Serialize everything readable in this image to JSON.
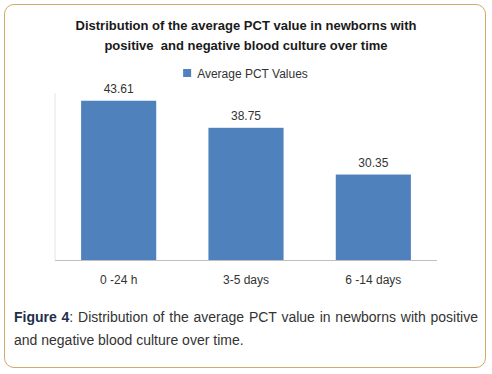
{
  "chart_data": {
    "type": "bar",
    "title": "Distribution of the average PCT value in newborns with positive  and negative blood culture over time",
    "categories": [
      "0 -24 h",
      "3-5 days",
      "6 -14 days"
    ],
    "series": [
      {
        "name": "Average PCT Values",
        "color": "#4f81bd",
        "values": [
          43.61,
          38.75,
          30.35
        ]
      }
    ],
    "ylim": [
      15,
      45
    ],
    "data_labels": true,
    "tick_labels": "x",
    "legend": "top",
    "caption": "Figure 4: Distribution of the average PCT value in newborns with positive and negative blood culture over time."
  }
}
